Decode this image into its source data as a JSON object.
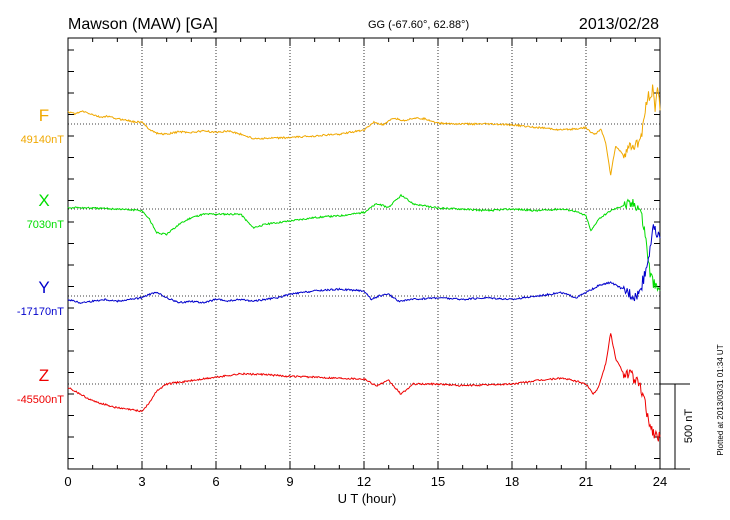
{
  "chart_data": {
    "type": "line",
    "title": {
      "station": "Mawson (MAW)  [GA]",
      "coords": "GG (-67.60°,  62.88°)",
      "date": "2013/02/28"
    },
    "xlabel": "U T (hour)",
    "xlim": [
      0,
      24
    ],
    "xticks": [
      0,
      3,
      6,
      9,
      12,
      15,
      18,
      21,
      24
    ],
    "scale_bar_label": "500 nT",
    "scale_bar_nT": 500,
    "footer": "Plotted at 2013/03/31 01:34 UT",
    "colors": {
      "F": "#f0a800",
      "X": "#00dd00",
      "Y": "#0000cc",
      "Z": "#ee0000",
      "grid": "#000000"
    },
    "series": [
      {
        "name": "F",
        "baseline_label": "49140nT",
        "baseline_nT": 49140,
        "color": "#f0a800",
        "points": [
          [
            0,
            70
          ],
          [
            0.3,
            60
          ],
          [
            0.6,
            75
          ],
          [
            1,
            55
          ],
          [
            1.3,
            40
          ],
          [
            1.6,
            45
          ],
          [
            2,
            30
          ],
          [
            2.3,
            25
          ],
          [
            2.6,
            15
          ],
          [
            3,
            10
          ],
          [
            3.3,
            -30
          ],
          [
            3.6,
            -55
          ],
          [
            4,
            -60
          ],
          [
            4.5,
            -45
          ],
          [
            5,
            -50
          ],
          [
            5.5,
            -40
          ],
          [
            6,
            -50
          ],
          [
            6.5,
            -40
          ],
          [
            7,
            -60
          ],
          [
            7.5,
            -85
          ],
          [
            8,
            -85
          ],
          [
            9,
            -80
          ],
          [
            10,
            -70
          ],
          [
            11,
            -60
          ],
          [
            12,
            -35
          ],
          [
            12.4,
            10
          ],
          [
            12.8,
            -5
          ],
          [
            13.2,
            35
          ],
          [
            13.6,
            20
          ],
          [
            14,
            35
          ],
          [
            14.5,
            30
          ],
          [
            15,
            5
          ],
          [
            16,
            0
          ],
          [
            17,
            0
          ],
          [
            18,
            -5
          ],
          [
            19,
            -20
          ],
          [
            20,
            -35
          ],
          [
            20.5,
            -30
          ],
          [
            21,
            -20
          ],
          [
            21.2,
            -50
          ],
          [
            21.4,
            -60
          ],
          [
            21.6,
            -30
          ],
          [
            21.8,
            -110
          ],
          [
            22,
            -300
          ],
          [
            22.2,
            -130
          ],
          [
            22.5,
            -180
          ],
          [
            22.8,
            -140
          ],
          [
            23,
            -130
          ],
          [
            23.2,
            -100
          ],
          [
            23.4,
            70
          ],
          [
            23.5,
            150
          ],
          [
            23.7,
            200
          ],
          [
            23.8,
            90
          ],
          [
            23.9,
            220
          ],
          [
            24,
            80
          ]
        ]
      },
      {
        "name": "X",
        "baseline_label": "7030nT",
        "baseline_nT": 7030,
        "color": "#00dd00",
        "points": [
          [
            0,
            10
          ],
          [
            1,
            5
          ],
          [
            2,
            0
          ],
          [
            3,
            -10
          ],
          [
            3.3,
            -60
          ],
          [
            3.6,
            -140
          ],
          [
            4,
            -150
          ],
          [
            4.5,
            -90
          ],
          [
            5,
            -50
          ],
          [
            5.5,
            -30
          ],
          [
            6,
            -30
          ],
          [
            7,
            -30
          ],
          [
            7.5,
            -110
          ],
          [
            8,
            -90
          ],
          [
            9,
            -70
          ],
          [
            10,
            -50
          ],
          [
            11,
            -40
          ],
          [
            12,
            -20
          ],
          [
            12.5,
            30
          ],
          [
            13,
            10
          ],
          [
            13.5,
            80
          ],
          [
            14,
            30
          ],
          [
            15,
            5
          ],
          [
            16,
            0
          ],
          [
            17,
            -10
          ],
          [
            18,
            0
          ],
          [
            19,
            -10
          ],
          [
            20,
            0
          ],
          [
            20.5,
            -10
          ],
          [
            21,
            -40
          ],
          [
            21.2,
            -130
          ],
          [
            21.5,
            -60
          ],
          [
            22,
            -10
          ],
          [
            22.5,
            20
          ],
          [
            23,
            30
          ],
          [
            23.2,
            0
          ],
          [
            23.4,
            -150
          ],
          [
            23.6,
            -380
          ],
          [
            23.8,
            -460
          ],
          [
            24,
            -480
          ]
        ]
      },
      {
        "name": "Y",
        "baseline_label": "-17170nT",
        "baseline_nT": -17170,
        "color": "#0000cc",
        "points": [
          [
            0,
            -20
          ],
          [
            0.5,
            -40
          ],
          [
            1,
            -30
          ],
          [
            1.5,
            -20
          ],
          [
            2,
            -30
          ],
          [
            2.5,
            -20
          ],
          [
            3,
            -10
          ],
          [
            3.3,
            10
          ],
          [
            3.6,
            20
          ],
          [
            4,
            -10
          ],
          [
            4.5,
            -40
          ],
          [
            5,
            -30
          ],
          [
            5.5,
            -40
          ],
          [
            6,
            -20
          ],
          [
            6.5,
            -30
          ],
          [
            7,
            -20
          ],
          [
            7.5,
            -30
          ],
          [
            8,
            -20
          ],
          [
            8.5,
            -10
          ],
          [
            9,
            10
          ],
          [
            10,
            30
          ],
          [
            11,
            40
          ],
          [
            12,
            30
          ],
          [
            12.3,
            -20
          ],
          [
            12.6,
            0
          ],
          [
            13,
            10
          ],
          [
            13.4,
            -30
          ],
          [
            14,
            -20
          ],
          [
            15,
            -10
          ],
          [
            16,
            -20
          ],
          [
            17,
            -10
          ],
          [
            18,
            -20
          ],
          [
            19,
            0
          ],
          [
            20,
            20
          ],
          [
            20.6,
            -10
          ],
          [
            21,
            20
          ],
          [
            21.5,
            60
          ],
          [
            22,
            80
          ],
          [
            22.5,
            40
          ],
          [
            23,
            0
          ],
          [
            23.2,
            30
          ],
          [
            23.5,
            200
          ],
          [
            23.7,
            400
          ],
          [
            24,
            340
          ]
        ]
      },
      {
        "name": "Z",
        "baseline_label": "-45500nT",
        "baseline_nT": -45500,
        "color": "#ee0000",
        "points": [
          [
            0,
            -20
          ],
          [
            0.5,
            -60
          ],
          [
            1,
            -100
          ],
          [
            1.5,
            -120
          ],
          [
            2,
            -140
          ],
          [
            2.5,
            -150
          ],
          [
            3,
            -160
          ],
          [
            3.3,
            -110
          ],
          [
            3.6,
            -40
          ],
          [
            4,
            0
          ],
          [
            4.5,
            10
          ],
          [
            5,
            20
          ],
          [
            5.5,
            30
          ],
          [
            6,
            40
          ],
          [
            6.5,
            50
          ],
          [
            7,
            60
          ],
          [
            8,
            55
          ],
          [
            9,
            45
          ],
          [
            10,
            40
          ],
          [
            11,
            35
          ],
          [
            12,
            30
          ],
          [
            12.5,
            -10
          ],
          [
            13,
            20
          ],
          [
            13.5,
            -60
          ],
          [
            14,
            0
          ],
          [
            15,
            0
          ],
          [
            16,
            -10
          ],
          [
            17,
            -5
          ],
          [
            18,
            0
          ],
          [
            19,
            20
          ],
          [
            20,
            35
          ],
          [
            20.5,
            20
          ],
          [
            21,
            0
          ],
          [
            21.3,
            -60
          ],
          [
            21.5,
            -20
          ],
          [
            21.8,
            120
          ],
          [
            22,
            300
          ],
          [
            22.2,
            150
          ],
          [
            22.5,
            70
          ],
          [
            22.8,
            60
          ],
          [
            23,
            20
          ],
          [
            23.2,
            -20
          ],
          [
            23.4,
            -120
          ],
          [
            23.6,
            -250
          ],
          [
            23.8,
            -300
          ],
          [
            24,
            -310
          ]
        ]
      }
    ]
  }
}
